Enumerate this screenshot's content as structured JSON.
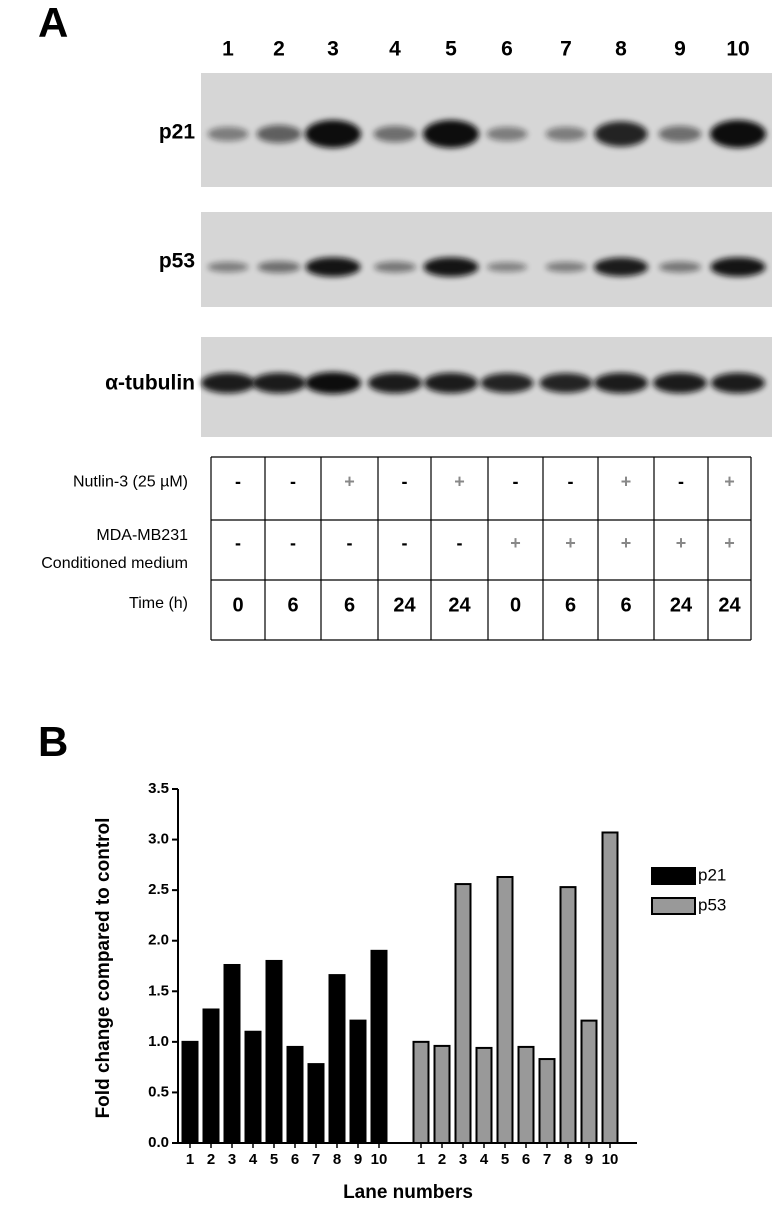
{
  "panel_a": {
    "label": "A",
    "lanes": [
      1,
      2,
      3,
      4,
      5,
      6,
      7,
      8,
      9,
      10
    ],
    "blots": [
      "p21",
      "p53",
      "α-tubulin"
    ],
    "table": {
      "rows": [
        {
          "label": [
            "Nutlin-3 (25 µM)"
          ],
          "cells": [
            "-",
            "-",
            "+",
            "-",
            "+",
            "-",
            "-",
            "+",
            "-",
            "+"
          ]
        },
        {
          "label": [
            "MDA-MB231",
            "Conditioned medium"
          ],
          "cells": [
            "-",
            "-",
            "-",
            "-",
            "-",
            "+",
            "+",
            "+",
            "+",
            "+"
          ]
        },
        {
          "label": [
            "Time (h)"
          ],
          "cells": [
            0,
            6,
            6,
            24,
            24,
            0,
            6,
            6,
            24,
            24
          ]
        }
      ]
    }
  },
  "panel_b": {
    "label": "B"
  },
  "chart_data": {
    "type": "bar",
    "xlabel": "Lane numbers",
    "ylabel": "Fold change compared to control",
    "categories": [
      1,
      2,
      3,
      4,
      5,
      6,
      7,
      8,
      9,
      10
    ],
    "series": [
      {
        "name": "p21",
        "color": "#000000",
        "values": [
          1.0,
          1.32,
          1.76,
          1.1,
          1.8,
          0.95,
          0.78,
          1.66,
          1.21,
          1.9
        ]
      },
      {
        "name": "p53",
        "color": "#999999",
        "values": [
          1.0,
          0.96,
          2.56,
          0.94,
          2.63,
          0.95,
          0.83,
          2.53,
          1.21,
          3.07
        ]
      }
    ],
    "ylim": [
      0,
      3.5
    ],
    "yticks": [
      {
        "value": 0,
        "label": "0.0"
      },
      0.5,
      {
        "value": 1,
        "label": "1.0"
      },
      1.5,
      {
        "value": 2,
        "label": "2.0"
      },
      2.5,
      {
        "value": 3,
        "label": "3.0"
      },
      3.5
    ],
    "legend": "right"
  }
}
